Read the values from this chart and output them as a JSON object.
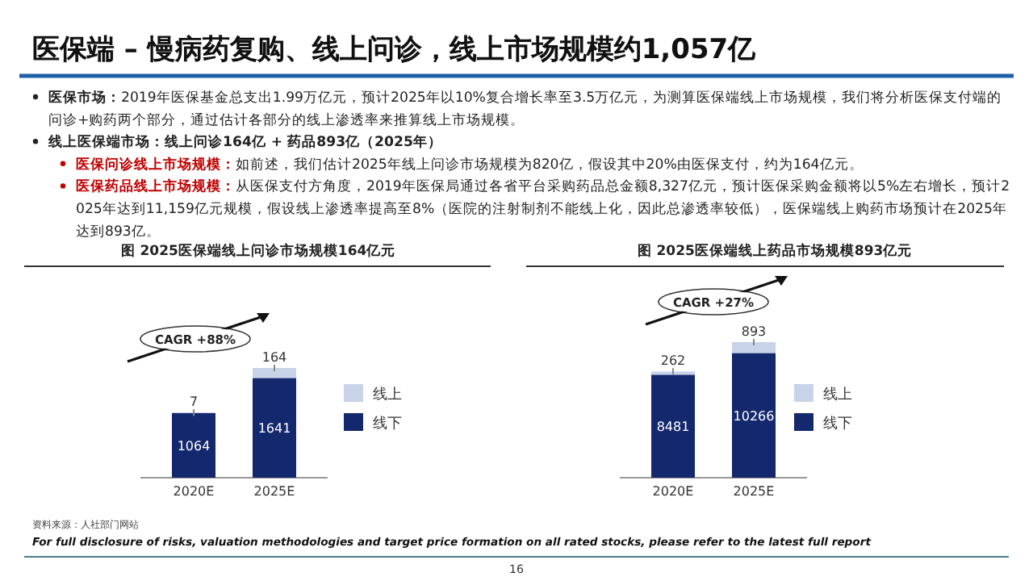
{
  "chart_data": [
    {
      "type": "bar",
      "title": "图 2025医保端线上问诊市场规模164亿元",
      "categories": [
        "2020E",
        "2025E"
      ],
      "stacked": true,
      "data_labels": true,
      "legend": "right",
      "series": [
        {
          "name": "线下",
          "color": "#14286e",
          "values": [
            1064,
            1641
          ]
        },
        {
          "name": "线上",
          "color": "#c8d3e8",
          "values": [
            7,
            164
          ]
        }
      ],
      "annotations": [
        "CAGR +88%",
        "医保端 – 慢病药复购、线上问诊，线上市场规模约1,057亿",
        "医保市场：2019年医保基金总支出1.99万亿元，预计2025年以10%复合增长率至3.5万亿元，为测算医保端线上市场规模，我们将分析医保支付端的问诊+购药两个部分，通过估计各部分的线上渗透率来推算线上市场规模。",
        "线上医保端市场：线上问诊164亿 + 药品893亿（2025年）",
        "医保问诊线上市场规模：如前述，我们估计2025年线上问诊市场规模为820亿，假设其中20%由医保支付，约为164亿元。",
        "医保药品线上市场规模：从医保支付方角度，2019年医保局通过各省平台采购药品总金额8,327亿元，预计医保采购金额将以5%左右增长，预计2025年达到11,159亿元规模，假设线上渗透率提高至8%（医院的注射制剂不能线上化，因此总渗透率较低），医保端线上购药市场预计在2025年达到893亿。"
      ]
    },
    {
      "type": "bar",
      "title": "图 2025医保端线上药品市场规模893亿元",
      "categories": [
        "2020E",
        "2025E"
      ],
      "stacked": true,
      "data_labels": true,
      "legend": "right",
      "series": [
        {
          "name": "线下",
          "color": "#14286e",
          "values": [
            8481,
            10266
          ]
        },
        {
          "name": "线上",
          "color": "#c8d3e8",
          "values": [
            262,
            893
          ]
        }
      ],
      "annotations": [
        "CAGR +27%",
        "资料来源：人社部门网站",
        "For full disclosure of risks, valuation methodologies and target price formation on all rated stocks, please refer to the latest full report",
        "16"
      ]
    }
  ]
}
